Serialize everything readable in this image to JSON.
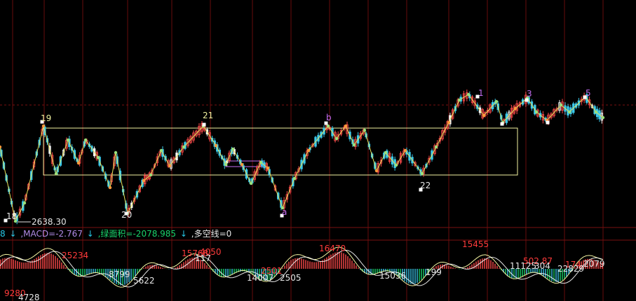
{
  "colors": {
    "background": "#000000",
    "grid_red": "#7a1010",
    "box_yellow": "#f2f2a0",
    "wave_line": "#e8e25a",
    "up_candle": "#ff4b4b",
    "down_candle": "#3bc9ea",
    "flat_candle": "#f5f5f5",
    "dot_green": "#9be07a",
    "dot_orange": "#ff9a3a",
    "label_yellow": "#f2f2a0",
    "label_magenta": "#c26cf0",
    "label_white": "#e6e6e6",
    "label_red": "#ff3b3b",
    "purple_box": "#c26cf0",
    "macd_green": "#19d26a"
  },
  "header": {
    "index_tail": "8",
    "arrow1": "↓",
    "macd_text": ",MACD=-2.767",
    "arrow2": "↓",
    "green_area_text": ",绿面积=-2078.985",
    "arrow3": "↓",
    "multi_line_text": ",多空线=0"
  },
  "chart_data": {
    "type": "candlestick",
    "wave_labels": [
      {
        "text": "19",
        "color": "label_yellow"
      },
      {
        "text": "21",
        "color": "label_yellow"
      },
      {
        "text": "b",
        "color": "label_magenta"
      },
      {
        "text": "1",
        "color": "label_magenta"
      },
      {
        "text": "3",
        "color": "label_magenta"
      },
      {
        "text": "5",
        "color": "label_magenta"
      },
      {
        "text": "18",
        "color": "label_white"
      },
      {
        "text": "2638.30",
        "color": "label_white"
      },
      {
        "text": "20",
        "color": "label_white"
      },
      {
        "text": "a",
        "color": "label_magenta"
      },
      {
        "text": "22",
        "color": "label_white"
      }
    ],
    "macd_labels": [
      {
        "text": "25234",
        "color": "label_red"
      },
      {
        "text": "15768",
        "color": "label_red"
      },
      {
        "text": "4050",
        "color": "label_red"
      },
      {
        "text": "117",
        "color": "label_white"
      },
      {
        "text": "16470",
        "color": "label_red"
      },
      {
        "text": "15455",
        "color": "label_red"
      },
      {
        "text": "502.87",
        "color": "label_red"
      },
      {
        "text": "174",
        "color": "label_red"
      },
      {
        "text": "2079",
        "color": "label_white"
      },
      {
        "text": "8799",
        "color": "label_white"
      },
      {
        "text": "5622",
        "color": "label_white"
      },
      {
        "text": "14007",
        "color": "label_white"
      },
      {
        "text": "2505",
        "color": "label_white"
      },
      {
        "text": "2501",
        "color": "label_red"
      },
      {
        "text": "15036",
        "color": "label_white"
      },
      {
        "text": "199",
        "color": "label_white"
      },
      {
        "text": "11125",
        "color": "label_white"
      },
      {
        "text": "304",
        "color": "label_white"
      },
      {
        "text": "22829",
        "color": "label_white"
      },
      {
        "text": "9280",
        "color": "label_red"
      },
      {
        "text": "4728",
        "color": "label_white"
      }
    ]
  }
}
